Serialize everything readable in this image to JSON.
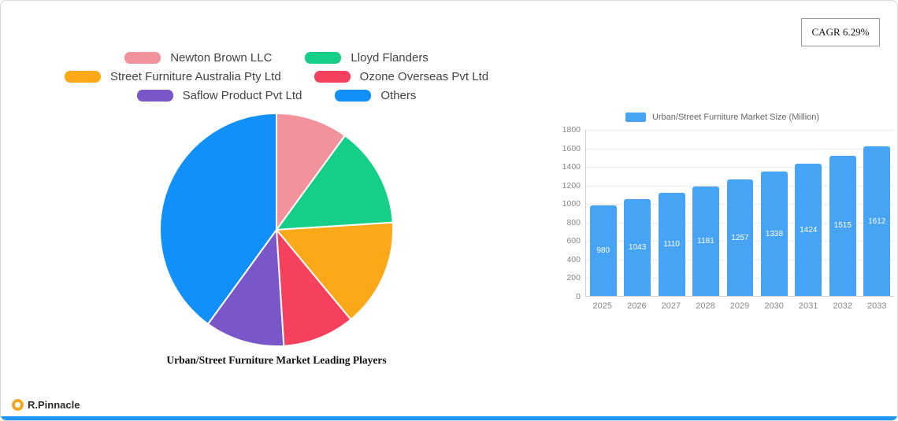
{
  "cagr_label": "CAGR 6.29%",
  "brand": {
    "name": "R.Pinnacle"
  },
  "colors": {
    "bar_blue": "#47A4F5",
    "accent_strip": "#2196F3",
    "logo_orange": "#F5A623"
  },
  "chart_data": [
    {
      "type": "pie",
      "title": "Urban/Street Furniture Market Leading Players",
      "legend_position": "top",
      "slices": [
        {
          "label": "Newton Brown LLC",
          "value": 10,
          "color": "#F2929C"
        },
        {
          "label": "Lloyd Flanders",
          "value": 14,
          "color": "#15CE87"
        },
        {
          "label": "Street Furniture Australia Pty Ltd",
          "value": 15,
          "color": "#FBA919"
        },
        {
          "label": "Ozone Overseas Pvt  Ltd",
          "value": 10,
          "color": "#F5415D"
        },
        {
          "label": "Saflow Product Pvt  Ltd",
          "value": 11,
          "color": "#7A57C9"
        },
        {
          "label": "Others",
          "value": 40,
          "color": "#1090F8"
        }
      ]
    },
    {
      "type": "bar",
      "legend": "Urban/Street Furniture Market Size (Million)",
      "categories": [
        "2025",
        "2026",
        "2027",
        "2028",
        "2029",
        "2030",
        "2031",
        "2032",
        "2033"
      ],
      "values": [
        980,
        1043,
        1110,
        1181,
        1257,
        1338,
        1424,
        1515,
        1612
      ],
      "ylim": [
        0,
        1800
      ],
      "ytick_step": 200,
      "bar_color": "#47A4F5",
      "grid": true,
      "legend_position": "top"
    }
  ]
}
